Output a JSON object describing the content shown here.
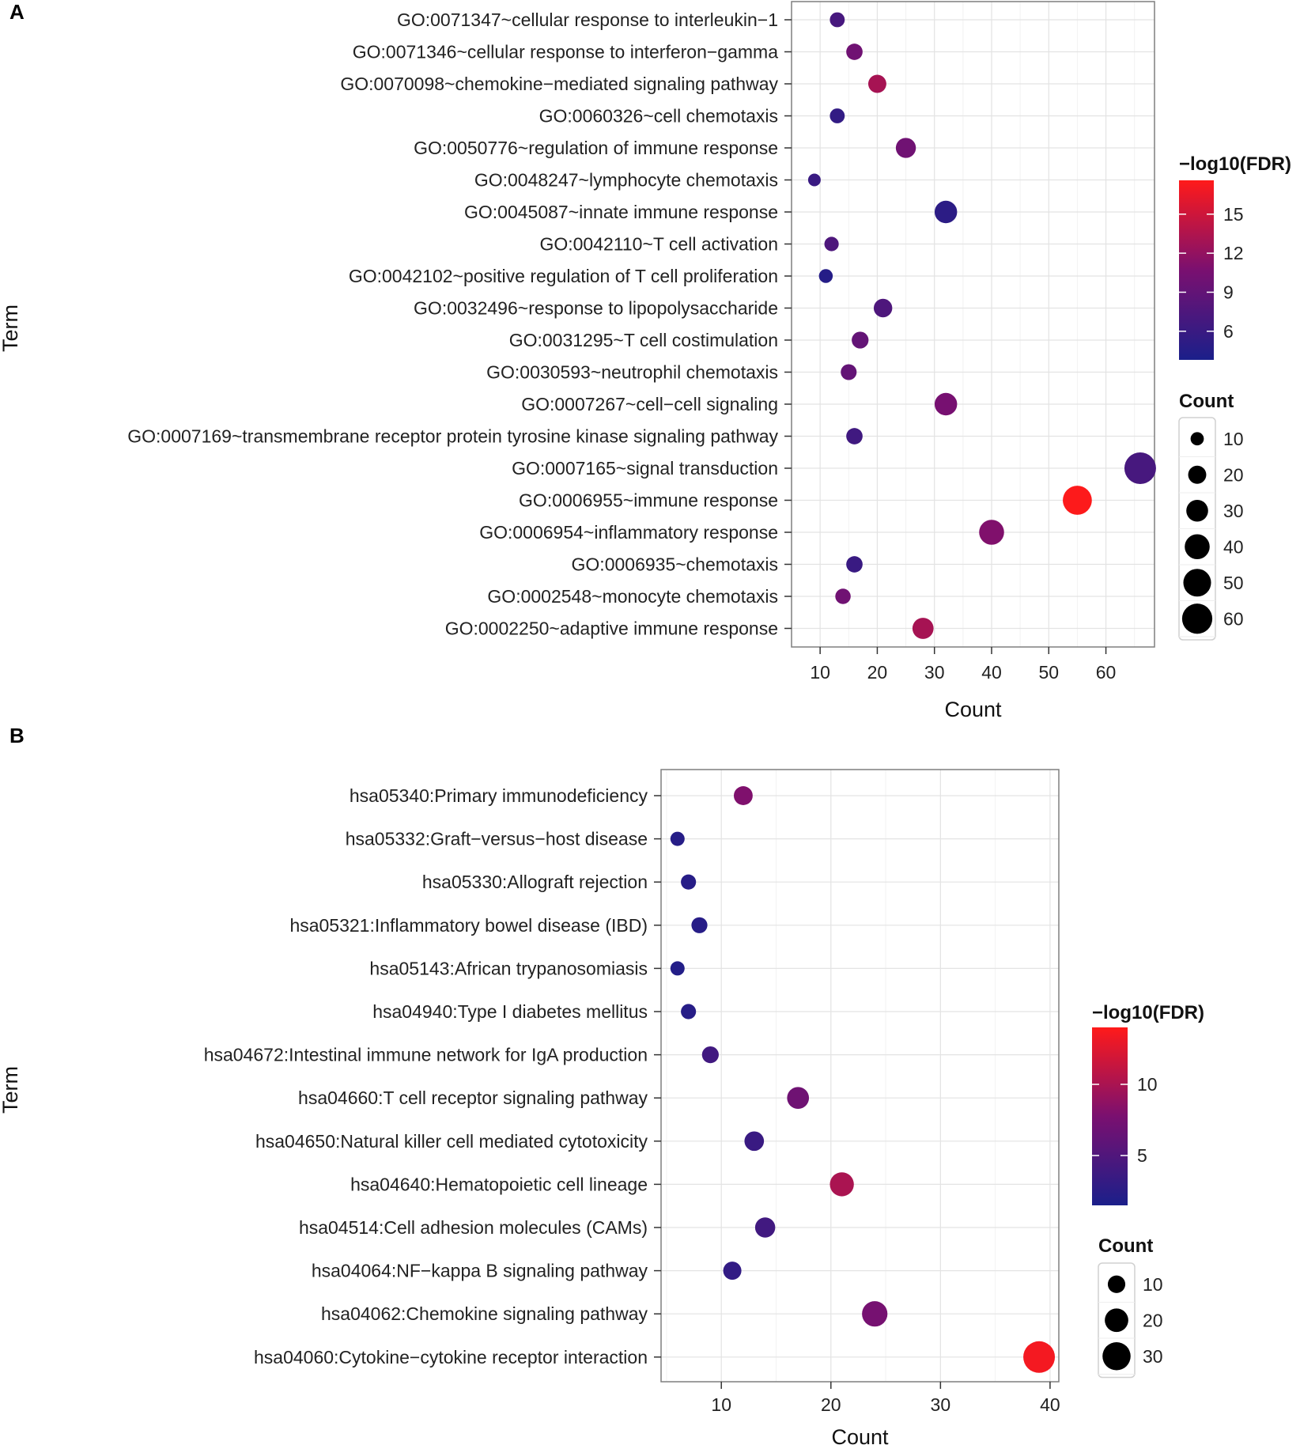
{
  "chart_data": [
    {
      "panel_label": "A",
      "type": "scatter",
      "xlabel": "Count",
      "ylabel": "Term",
      "xlim": [
        5,
        68.5
      ],
      "xticks": [
        10,
        20,
        30,
        40,
        50,
        60
      ],
      "grid": true,
      "color_low": "#1b1f8a",
      "color_mid": "#7a1070",
      "color_high": "#ff1a1a",
      "color_legend": {
        "title": "−log10(FDR)",
        "min": 3.8,
        "max": 17.6,
        "ticks": [
          15,
          12,
          9,
          6
        ]
      },
      "size_legend": {
        "title": "Count",
        "values": [
          10,
          20,
          30,
          40,
          50,
          60
        ]
      },
      "size_scale": {
        "min_count": 9,
        "max_count": 66
      },
      "points": [
        {
          "term": "GO:0071347~cellular response to interleukin−1",
          "count": 13,
          "fdr": 7.0
        },
        {
          "term": "GO:0071346~cellular response to interferon−gamma",
          "count": 16,
          "fdr": 10.0
        },
        {
          "term": "GO:0070098~chemokine−mediated signaling pathway",
          "count": 20,
          "fdr": 13.0
        },
        {
          "term": "GO:0060326~cell chemotaxis",
          "count": 13,
          "fdr": 5.5
        },
        {
          "term": "GO:0050776~regulation of immune response",
          "count": 25,
          "fdr": 10.0
        },
        {
          "term": "GO:0048247~lymphocyte chemotaxis",
          "count": 9,
          "fdr": 6.0
        },
        {
          "term": "GO:0045087~innate immune response",
          "count": 32,
          "fdr": 5.0
        },
        {
          "term": "GO:0042110~T cell activation",
          "count": 12,
          "fdr": 7.5
        },
        {
          "term": "GO:0042102~positive regulation of T cell proliferation",
          "count": 11,
          "fdr": 4.5
        },
        {
          "term": "GO:0032496~response to lipopolysaccharide",
          "count": 21,
          "fdr": 7.5
        },
        {
          "term": "GO:0031295~T cell costimulation",
          "count": 17,
          "fdr": 9.0
        },
        {
          "term": "GO:0030593~neutrophil chemotaxis",
          "count": 15,
          "fdr": 9.0
        },
        {
          "term": "GO:0007267~cell−cell signaling",
          "count": 32,
          "fdr": 10.5
        },
        {
          "term": "GO:0007169~transmembrane receptor protein tyrosine kinase signaling pathway",
          "count": 16,
          "fdr": 6.5
        },
        {
          "term": "GO:0007165~signal transduction",
          "count": 66,
          "fdr": 7.0
        },
        {
          "term": "GO:0006955~immune response",
          "count": 55,
          "fdr": 17.5
        },
        {
          "term": "GO:0006954~inflammatory response",
          "count": 40,
          "fdr": 11.0
        },
        {
          "term": "GO:0006935~chemotaxis",
          "count": 16,
          "fdr": 6.0
        },
        {
          "term": "GO:0002548~monocyte chemotaxis",
          "count": 14,
          "fdr": 10.0
        },
        {
          "term": "GO:0002250~adaptive immune response",
          "count": 28,
          "fdr": 13.0
        }
      ]
    },
    {
      "panel_label": "B",
      "type": "scatter",
      "xlabel": "Count",
      "ylabel": "Term",
      "xlim": [
        4.5,
        40.8
      ],
      "xticks": [
        10,
        20,
        30,
        40
      ],
      "grid": true,
      "color_low": "#1b1f8a",
      "color_mid": "#7a1070",
      "color_high": "#ff1a1a",
      "color_legend": {
        "title": "−log10(FDR)",
        "min": 1.5,
        "max": 14.0,
        "ticks": [
          10,
          5
        ]
      },
      "size_legend": {
        "title": "Count",
        "values": [
          10,
          20,
          30
        ]
      },
      "size_scale": {
        "min_count": 6,
        "max_count": 39
      },
      "points": [
        {
          "term": "hsa05340:Primary immunodeficiency",
          "count": 12,
          "fdr": 8.0
        },
        {
          "term": "hsa05332:Graft−versus−host disease",
          "count": 6,
          "fdr": 2.2
        },
        {
          "term": "hsa05330:Allograft rejection",
          "count": 7,
          "fdr": 2.3
        },
        {
          "term": "hsa05321:Inflammatory bowel disease (IBD)",
          "count": 8,
          "fdr": 2.3
        },
        {
          "term": "hsa05143:African trypanosomiasis",
          "count": 6,
          "fdr": 2.0
        },
        {
          "term": "hsa04940:Type I diabetes mellitus",
          "count": 7,
          "fdr": 2.3
        },
        {
          "term": "hsa04672:Intestinal immune network for IgA production",
          "count": 9,
          "fdr": 4.0
        },
        {
          "term": "hsa04660:T cell receptor signaling pathway",
          "count": 17,
          "fdr": 7.0
        },
        {
          "term": "hsa04650:Natural killer cell mediated cytotoxicity",
          "count": 13,
          "fdr": 3.5
        },
        {
          "term": "hsa04640:Hematopoietic cell lineage",
          "count": 21,
          "fdr": 10.0
        },
        {
          "term": "hsa04514:Cell adhesion molecules (CAMs)",
          "count": 14,
          "fdr": 4.0
        },
        {
          "term": "hsa04064:NF−kappa B signaling pathway",
          "count": 11,
          "fdr": 3.0
        },
        {
          "term": "hsa04062:Chemokine signaling pathway",
          "count": 24,
          "fdr": 7.5
        },
        {
          "term": "hsa04060:Cytokine−cytokine receptor interaction",
          "count": 39,
          "fdr": 13.5
        }
      ]
    }
  ]
}
